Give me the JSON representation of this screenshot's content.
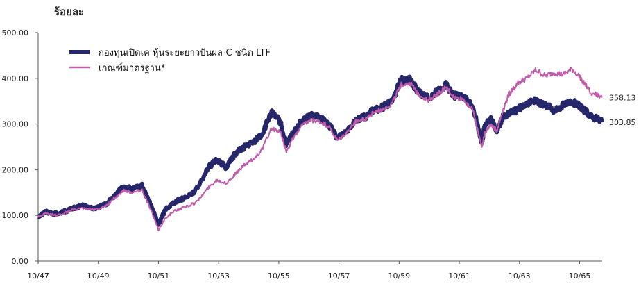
{
  "chart_data": {
    "type": "line",
    "ylabel": "ร้อยละ",
    "ylim": [
      0,
      500
    ],
    "yticks": [
      "0.00",
      "100.00",
      "200.00",
      "300.00",
      "400.00",
      "500.00"
    ],
    "x_tick_labels": [
      "10/47",
      "10/49",
      "10/51",
      "10/53",
      "10/55",
      "10/57",
      "10/59",
      "10/61",
      "10/63",
      "10/65"
    ],
    "x_tick_values": [
      2547.75,
      2549.75,
      2551.75,
      2553.75,
      2555.75,
      2557.75,
      2559.75,
      2561.75,
      2563.75,
      2565.75
    ],
    "xlim": [
      2547.75,
      2566.5
    ],
    "legend_position": "top-left",
    "series": [
      {
        "name": "กองทุนเปิดเค หุ้นระยะยาวปันผล-C ชนิด LTF",
        "color": "#26276a",
        "end_label": "303.85",
        "x": [
          2547.75,
          2548.0,
          2548.4,
          2548.8,
          2549.2,
          2549.6,
          2550.0,
          2550.3,
          2550.6,
          2550.9,
          2551.2,
          2551.5,
          2551.75,
          2552.0,
          2552.3,
          2552.6,
          2553.0,
          2553.4,
          2553.7,
          2554.0,
          2554.3,
          2554.6,
          2554.9,
          2555.2,
          2555.5,
          2555.8,
          2556.0,
          2556.2,
          2556.5,
          2556.8,
          2557.1,
          2557.4,
          2557.7,
          2558.0,
          2558.3,
          2558.6,
          2558.9,
          2559.2,
          2559.5,
          2559.8,
          2560.1,
          2560.4,
          2560.7,
          2561.0,
          2561.3,
          2561.6,
          2561.9,
          2562.2,
          2562.5,
          2562.6,
          2562.8,
          2563.0,
          2563.2,
          2563.4,
          2563.7,
          2564.0,
          2564.3,
          2564.6,
          2564.9,
          2565.2,
          2565.5,
          2565.8,
          2566.1,
          2566.5
        ],
        "y": [
          98,
          108,
          103,
          113,
          121,
          115,
          124,
          145,
          162,
          158,
          165,
          122,
          81,
          115,
          130,
          138,
          155,
          205,
          222,
          205,
          235,
          250,
          260,
          278,
          325,
          305,
          253,
          278,
          305,
          318,
          314,
          300,
          270,
          285,
          310,
          315,
          330,
          337,
          348,
          395,
          398,
          370,
          358,
          370,
          385,
          362,
          358,
          340,
          258,
          300,
          310,
          285,
          315,
          322,
          332,
          346,
          350,
          342,
          330,
          342,
          350,
          335,
          320,
          303.85
        ]
      },
      {
        "name": "เกณฑ์มาตรฐาน*",
        "color": "#c15aaa",
        "end_label": "358.13",
        "x": [
          2547.75,
          2548.0,
          2548.4,
          2548.8,
          2549.2,
          2549.6,
          2550.0,
          2550.3,
          2550.6,
          2550.9,
          2551.2,
          2551.5,
          2551.75,
          2552.0,
          2552.3,
          2552.6,
          2553.0,
          2553.4,
          2553.7,
          2554.0,
          2554.3,
          2554.6,
          2554.9,
          2555.2,
          2555.5,
          2555.8,
          2556.0,
          2556.2,
          2556.5,
          2556.8,
          2557.1,
          2557.4,
          2557.7,
          2558.0,
          2558.3,
          2558.6,
          2558.9,
          2559.2,
          2559.5,
          2559.8,
          2560.1,
          2560.4,
          2560.7,
          2561.0,
          2561.3,
          2561.6,
          2561.9,
          2562.2,
          2562.5,
          2562.6,
          2562.8,
          2563.0,
          2563.2,
          2563.4,
          2563.7,
          2564.0,
          2564.3,
          2564.6,
          2564.9,
          2565.2,
          2565.5,
          2565.8,
          2566.1,
          2566.5
        ],
        "y": [
          97,
          104,
          100,
          110,
          117,
          112,
          120,
          138,
          155,
          150,
          157,
          112,
          68,
          96,
          110,
          118,
          128,
          160,
          178,
          170,
          190,
          210,
          222,
          245,
          290,
          282,
          240,
          265,
          295,
          308,
          305,
          295,
          263,
          280,
          305,
          310,
          325,
          333,
          343,
          385,
          390,
          365,
          352,
          364,
          380,
          357,
          354,
          330,
          250,
          280,
          300,
          285,
          330,
          365,
          390,
          400,
          418,
          405,
          412,
          408,
          420,
          400,
          370,
          358.13
        ]
      }
    ]
  }
}
